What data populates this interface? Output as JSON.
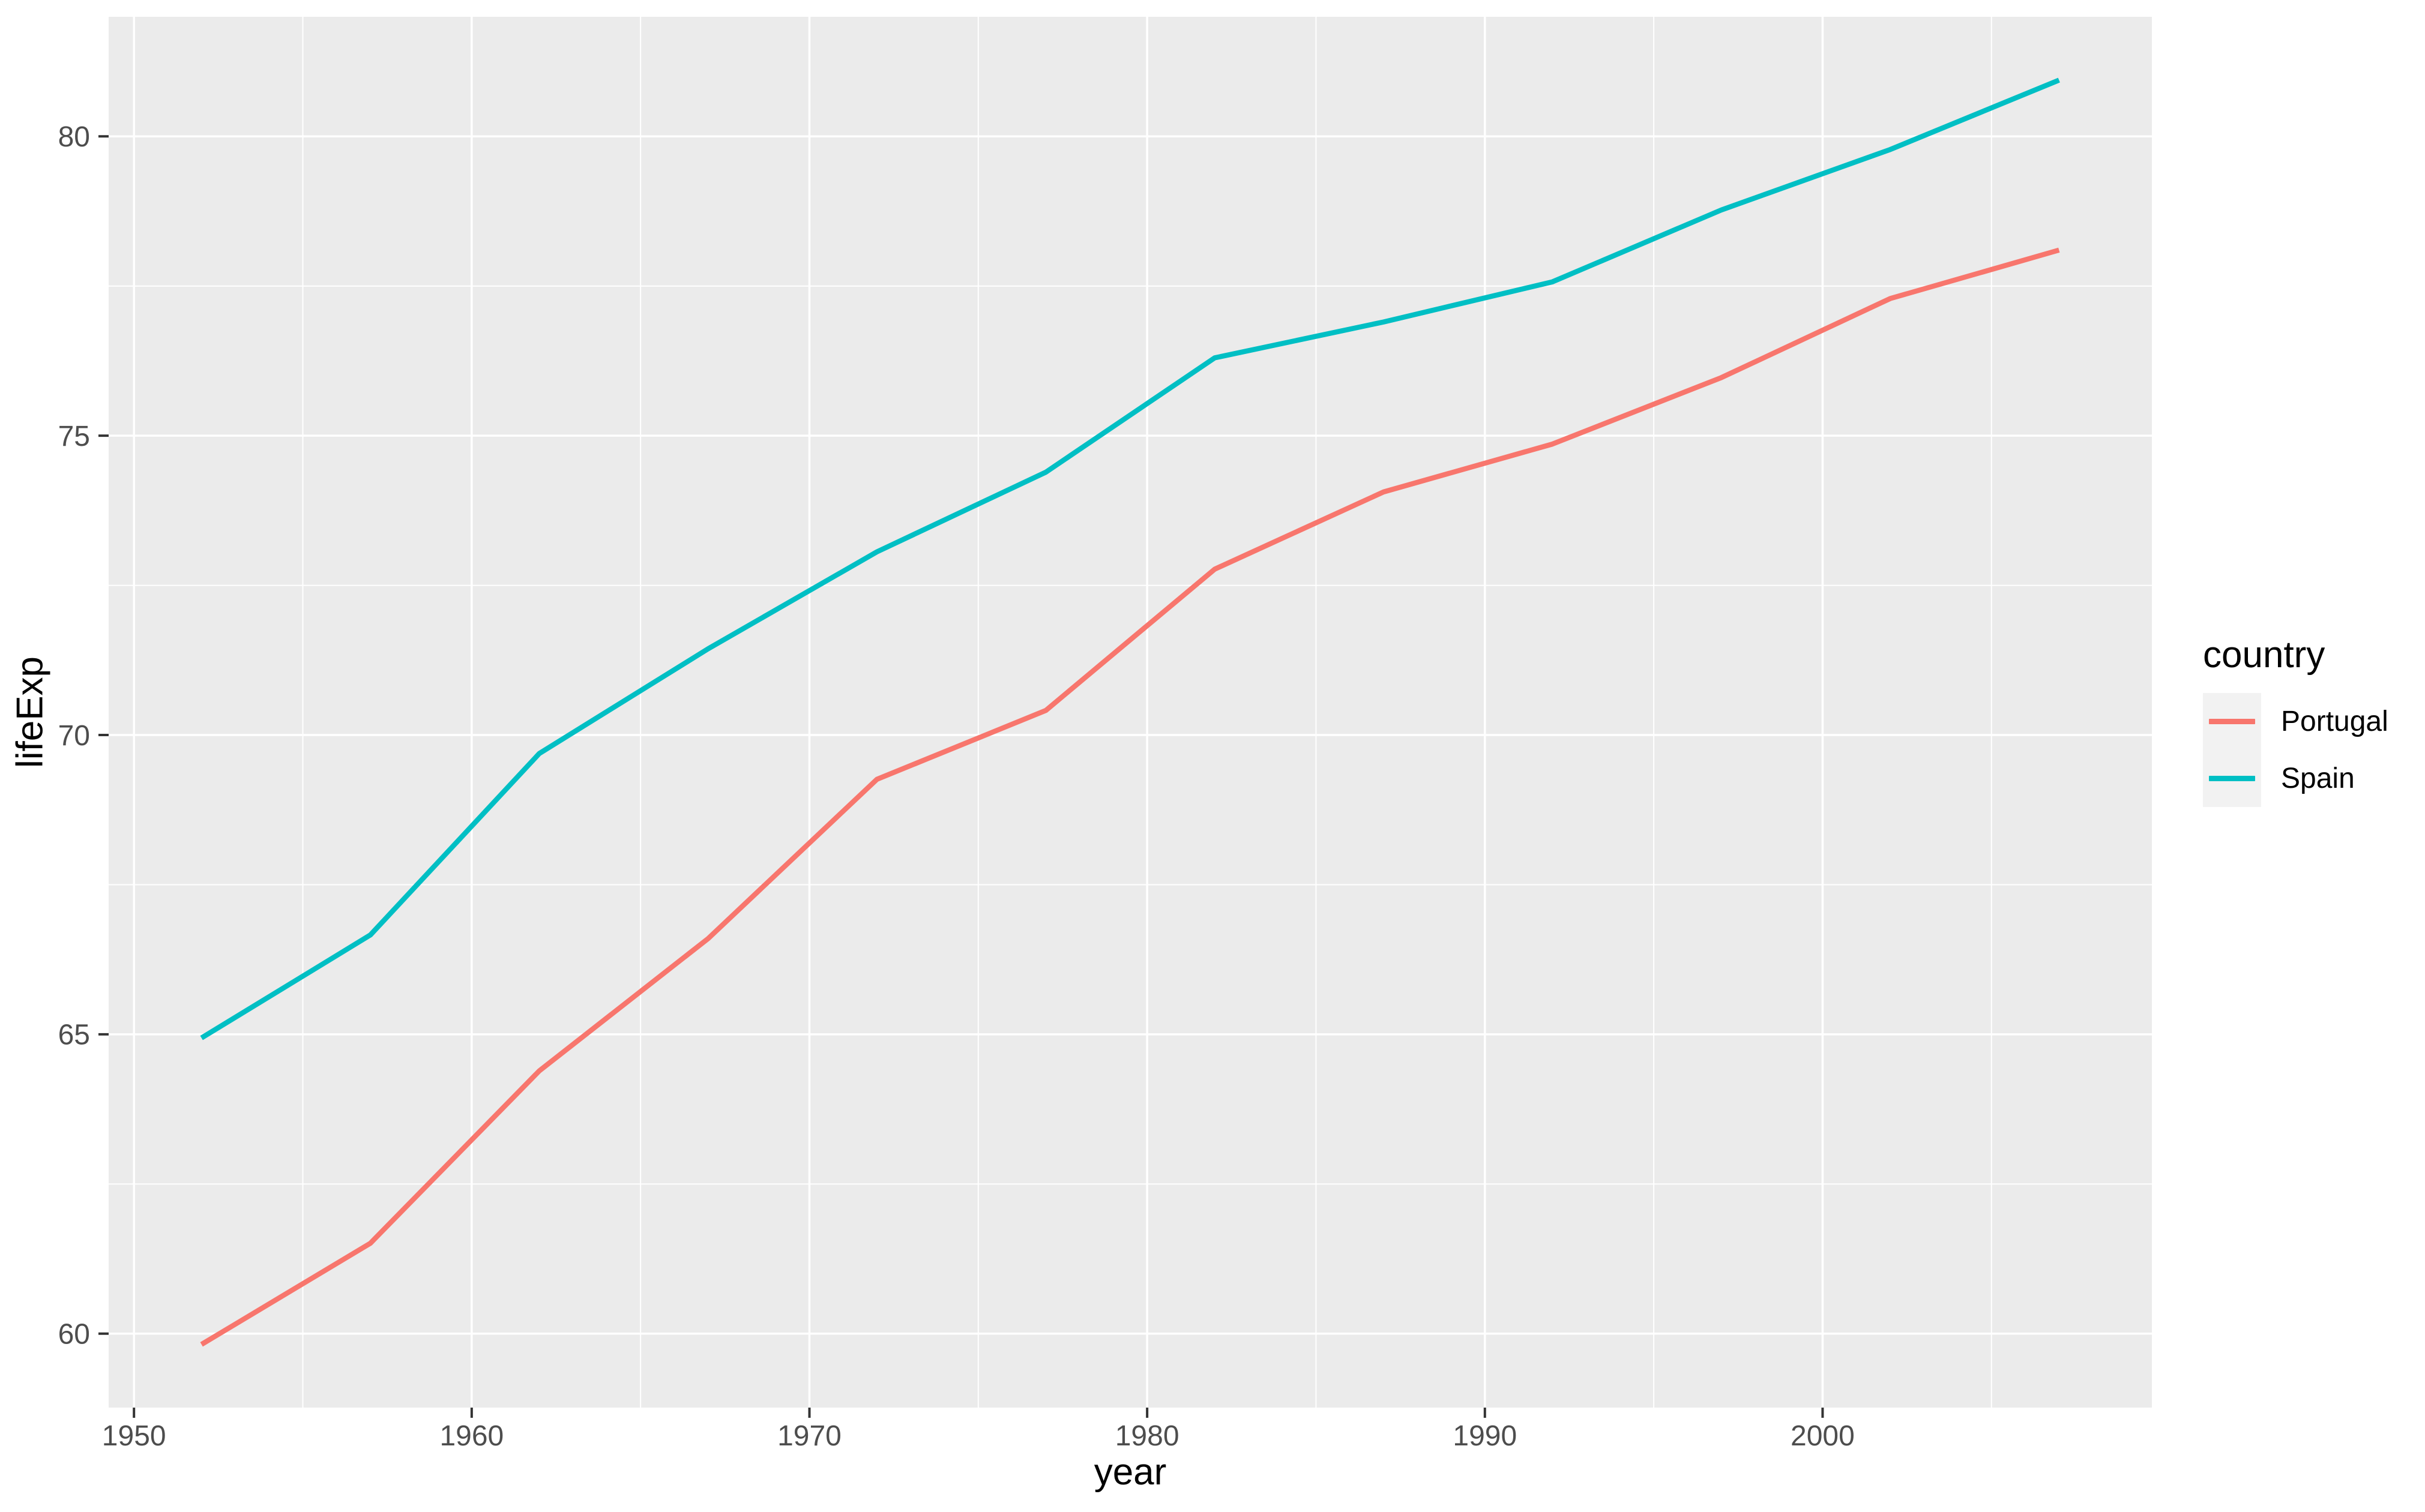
{
  "figure": {
    "background": "#FFFFFF",
    "panel_background": "#EBEBEB",
    "gridline_color": "#FFFFFF",
    "tick_mark_color": "#333333",
    "tick_label_color": "#4D4D4D",
    "axis_title_color": "#000000"
  },
  "axes": {
    "x_title": "year",
    "y_title": "lifeExp"
  },
  "legend": {
    "title": "country",
    "key_background": "#F2F2F2",
    "entries": [
      {
        "label": "Portugal",
        "color": "#F8766D"
      },
      {
        "label": "Spain",
        "color": "#00BFC4"
      }
    ]
  },
  "chart_data": {
    "type": "line",
    "title": "",
    "xlabel": "year",
    "ylabel": "lifeExp",
    "x": [
      1952,
      1957,
      1962,
      1967,
      1972,
      1977,
      1982,
      1987,
      1992,
      1997,
      2002,
      2007
    ],
    "series": [
      {
        "name": "Portugal",
        "color": "#F8766D",
        "values": [
          59.82,
          61.51,
          64.39,
          66.6,
          69.26,
          70.41,
          72.77,
          74.06,
          74.86,
          75.97,
          77.29,
          78.1
        ]
      },
      {
        "name": "Spain",
        "color": "#00BFC4",
        "values": [
          64.94,
          66.66,
          69.69,
          71.44,
          73.06,
          74.39,
          76.3,
          76.9,
          77.57,
          78.77,
          79.78,
          80.94
        ]
      }
    ],
    "xticks": [
      1950,
      1960,
      1970,
      1980,
      1990,
      2000
    ],
    "yticks": [
      60,
      65,
      70,
      75,
      80
    ],
    "xlim": [
      1949.25,
      2009.75
    ],
    "ylim": [
      58.765,
      81.997
    ],
    "grid": "major+minor",
    "legend_position": "right"
  }
}
